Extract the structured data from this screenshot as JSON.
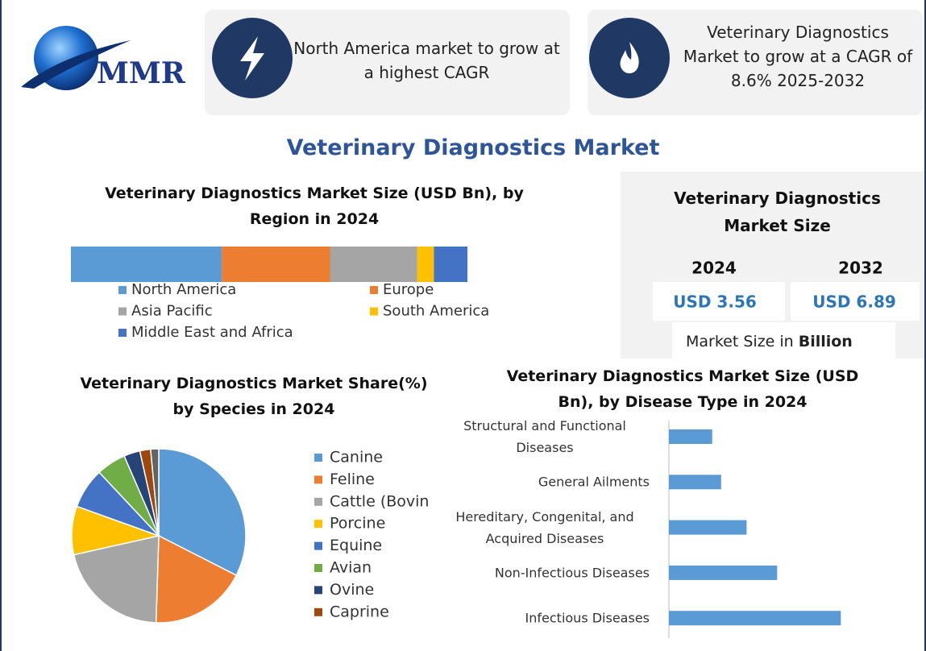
{
  "header": {
    "logo": "MMR",
    "box1": "North America market to grow at a highest CAGR",
    "box2": "Veterinary Diagnostics Market to grow at a CAGR of 8.6% 2025-2032"
  },
  "title": "Veterinary Diagnostics Market",
  "market_size": {
    "title": "Veterinary Diagnostics Market Size",
    "years": [
      "2024",
      "2032"
    ],
    "values": [
      "USD 3.56",
      "USD 6.89"
    ],
    "note_prefix": "Market Size in",
    "note_bold": "Billion"
  },
  "chart_data": [
    {
      "type": "stacked_bar",
      "title": "Veterinary Diagnostics Market Size (USD Bn), by Region in 2024",
      "series": [
        {
          "name": "North America",
          "color": "#5b9bd5",
          "values": [
            1.35
          ]
        },
        {
          "name": "Europe",
          "color": "#ed7d31",
          "values": [
            0.97
          ]
        },
        {
          "name": "Asia Pacific",
          "color": "#a5a5a5",
          "values": [
            0.78
          ]
        },
        {
          "name": "South America",
          "color": "#ffc000",
          "values": [
            0.15
          ]
        },
        {
          "name": "Middle East and Africa",
          "color": "#4472c4",
          "values": [
            0.3
          ]
        }
      ]
    },
    {
      "type": "pie",
      "title": "Veterinary Diagnostics Market Share(%) by Species in 2024",
      "categories": [
        "Canine",
        "Feline",
        "Cattle (Bovin",
        "Porcine",
        "Equine",
        "Avian",
        "Ovine",
        "Caprine",
        null
      ],
      "values": [
        32.5,
        18,
        21,
        9,
        7.5,
        5.5,
        3,
        2,
        1.5
      ],
      "colors": [
        "#5b9bd5",
        "#ed7d31",
        "#a5a5a5",
        "#ffc000",
        "#4472c4",
        "#70ad47",
        "#264478",
        "#9e480e",
        "#636363"
      ]
    },
    {
      "type": "hbar",
      "title": "Veterinary Diagnostics Market Size (USD Bn), by Disease Type in 2024",
      "categories": [
        "Structural and Functional Diseases",
        "General Ailments",
        "Hereditary, Congenital, and Acquired Diseases",
        "Non-Infectious Diseases",
        "Infectious Diseases"
      ],
      "values": [
        0.34,
        0.41,
        0.61,
        0.85,
        1.35
      ],
      "color": "#5b9bd5",
      "xlim": [
        0,
        1.5
      ]
    }
  ]
}
